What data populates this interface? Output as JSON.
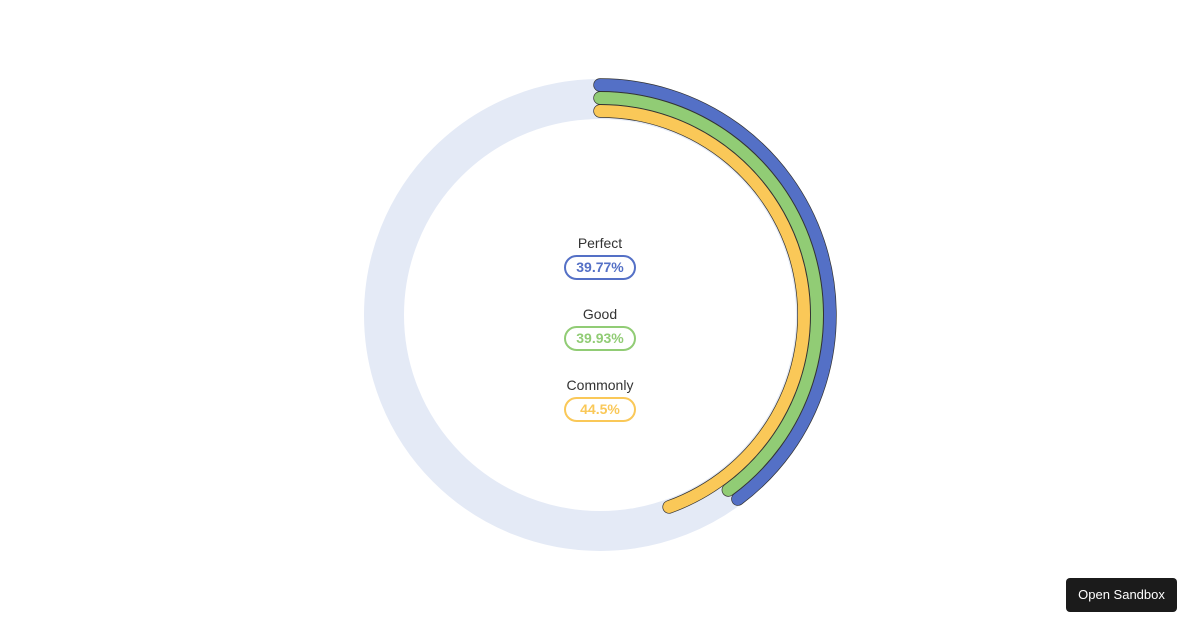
{
  "chart_data": {
    "type": "radial-bar",
    "track_color": "#e4eaf6",
    "series": [
      {
        "name": "Perfect",
        "value": 39.77,
        "label": "39.77%",
        "color": "#5470c6"
      },
      {
        "name": "Good",
        "value": 39.93,
        "label": "39.93%",
        "color": "#91cc75"
      },
      {
        "name": "Commonly",
        "value": 44.5,
        "label": "44.5%",
        "color": "#fac858"
      }
    ],
    "max": 100
  },
  "toolbar": {
    "open_sandbox_label": "Open Sandbox"
  }
}
